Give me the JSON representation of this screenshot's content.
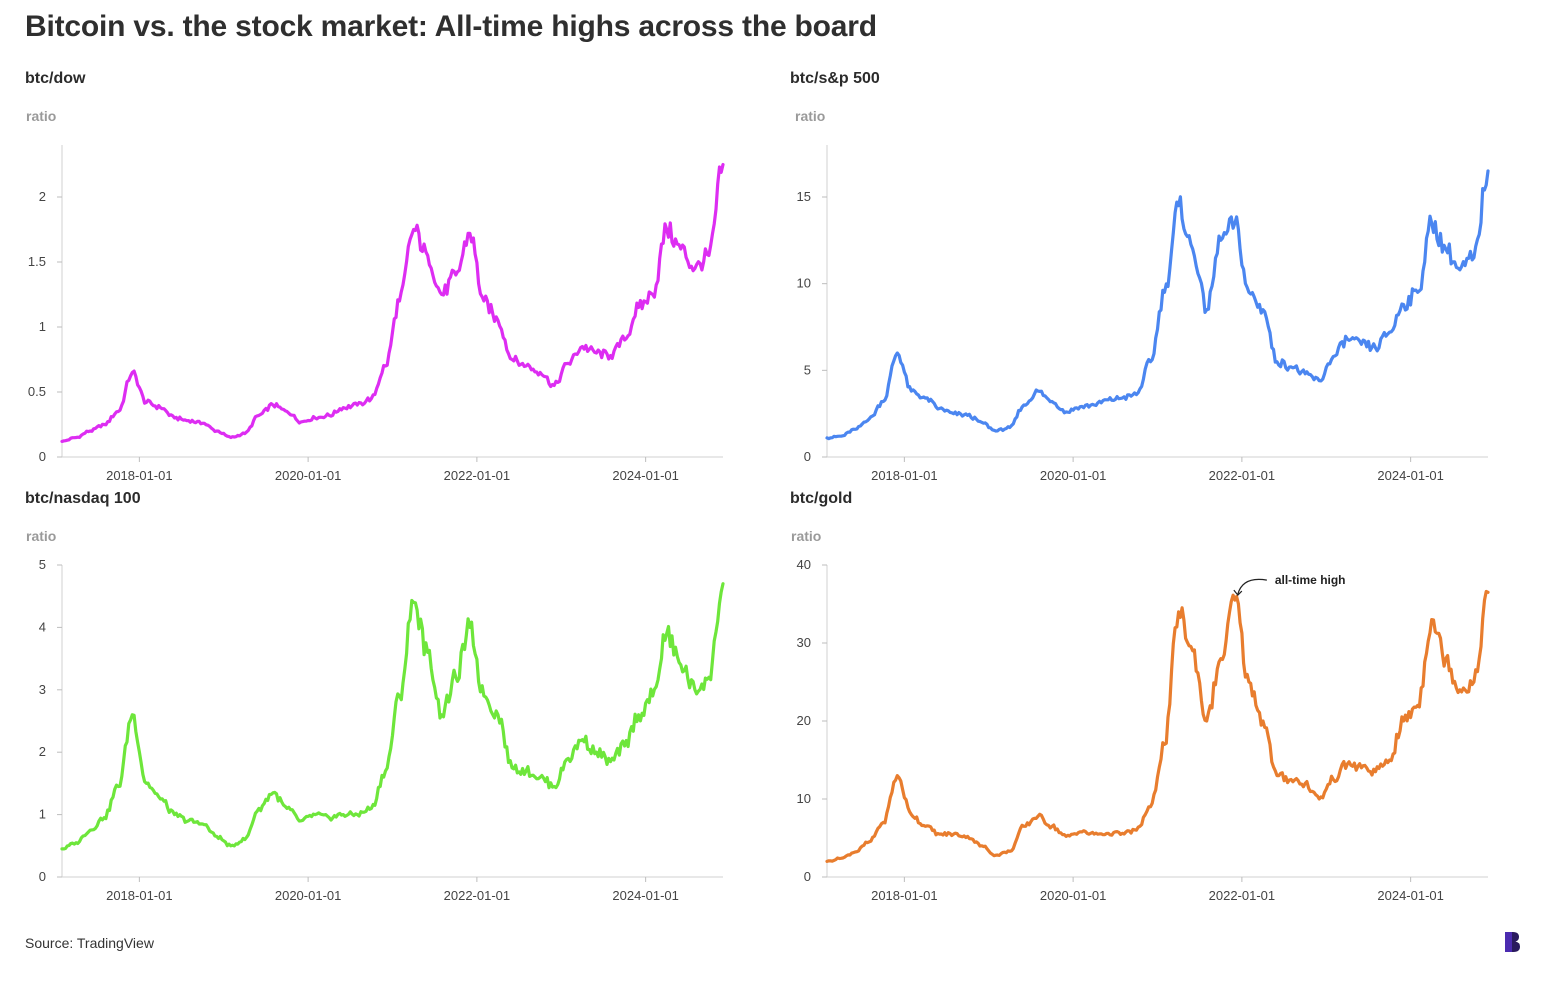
{
  "title": "Bitcoin vs. the stock market: All-time highs across the board",
  "source": "Source: TradingView",
  "logo": {
    "icon": "blockworks-logo-icon"
  },
  "chart_data": [
    {
      "id": "dow",
      "type": "line",
      "title": "btc/dow",
      "ylabel": "ratio",
      "color": "#dd2df2",
      "ylim": [
        0,
        2.4
      ],
      "yticks": [
        0,
        0.5,
        1,
        1.5,
        2
      ],
      "ytick_labels": [
        "0",
        "0.5",
        "1",
        "1.5",
        "2"
      ],
      "x": [
        "2017-02",
        "2017-04",
        "2017-06",
        "2017-08",
        "2017-10",
        "2017-12",
        "2018-02",
        "2018-04",
        "2018-06",
        "2018-08",
        "2018-10",
        "2018-12",
        "2019-02",
        "2019-04",
        "2019-06",
        "2019-08",
        "2019-10",
        "2019-12",
        "2020-02",
        "2020-04",
        "2020-06",
        "2020-08",
        "2020-10",
        "2020-12",
        "2021-02",
        "2021-04",
        "2021-06",
        "2021-08",
        "2021-10",
        "2021-12",
        "2022-02",
        "2022-04",
        "2022-06",
        "2022-08",
        "2022-10",
        "2022-12",
        "2023-02",
        "2023-04",
        "2023-06",
        "2023-08",
        "2023-10",
        "2023-12",
        "2024-02",
        "2024-04",
        "2024-06",
        "2024-08",
        "2024-10",
        "2024-12"
      ],
      "y": [
        0.12,
        0.15,
        0.2,
        0.25,
        0.35,
        0.65,
        0.42,
        0.38,
        0.3,
        0.28,
        0.26,
        0.2,
        0.15,
        0.18,
        0.32,
        0.4,
        0.35,
        0.27,
        0.3,
        0.32,
        0.38,
        0.4,
        0.45,
        0.7,
        1.2,
        1.75,
        1.55,
        1.25,
        1.4,
        1.72,
        1.2,
        1.05,
        0.75,
        0.7,
        0.65,
        0.55,
        0.72,
        0.85,
        0.8,
        0.78,
        0.9,
        1.15,
        1.25,
        1.75,
        1.6,
        1.45,
        1.55,
        2.25
      ]
    },
    {
      "id": "sp500",
      "type": "line",
      "title": "btc/s&p 500",
      "ylabel": "ratio",
      "color": "#4b86f0",
      "ylim": [
        0,
        18
      ],
      "yticks": [
        0,
        5,
        10,
        15
      ],
      "ytick_labels": [
        "0",
        "5",
        "10",
        "15"
      ],
      "x": [
        "2017-02",
        "2017-04",
        "2017-06",
        "2017-08",
        "2017-10",
        "2017-12",
        "2018-02",
        "2018-04",
        "2018-06",
        "2018-08",
        "2018-10",
        "2018-12",
        "2019-02",
        "2019-04",
        "2019-06",
        "2019-08",
        "2019-10",
        "2019-12",
        "2020-02",
        "2020-04",
        "2020-06",
        "2020-08",
        "2020-10",
        "2020-12",
        "2021-02",
        "2021-04",
        "2021-06",
        "2021-08",
        "2021-10",
        "2021-12",
        "2022-02",
        "2022-04",
        "2022-06",
        "2022-08",
        "2022-10",
        "2022-12",
        "2023-02",
        "2023-04",
        "2023-06",
        "2023-08",
        "2023-10",
        "2023-12",
        "2024-02",
        "2024-04",
        "2024-06",
        "2024-08",
        "2024-10",
        "2024-12"
      ],
      "y": [
        1.1,
        1.2,
        1.6,
        2.2,
        3.2,
        6.0,
        3.8,
        3.4,
        2.8,
        2.5,
        2.4,
        2.0,
        1.5,
        1.7,
        3.0,
        3.8,
        3.2,
        2.6,
        2.9,
        3.0,
        3.3,
        3.4,
        3.6,
        5.5,
        9.5,
        14.5,
        12.0,
        8.5,
        12.5,
        13.5,
        9.5,
        8.5,
        5.5,
        5.2,
        4.8,
        4.4,
        5.8,
        6.8,
        6.5,
        6.3,
        7.2,
        8.8,
        9.5,
        13.5,
        12.0,
        10.8,
        11.5,
        16.5
      ]
    },
    {
      "id": "nasdaq",
      "type": "line",
      "title": "btc/nasdaq 100",
      "ylabel": "ratio",
      "color": "#6ee63b",
      "ylim": [
        0,
        5
      ],
      "yticks": [
        0,
        1,
        2,
        3,
        4,
        5
      ],
      "ytick_labels": [
        "0",
        "1",
        "2",
        "3",
        "4",
        "5"
      ],
      "x": [
        "2017-02",
        "2017-04",
        "2017-06",
        "2017-08",
        "2017-10",
        "2017-12",
        "2018-02",
        "2018-04",
        "2018-06",
        "2018-08",
        "2018-10",
        "2018-12",
        "2019-02",
        "2019-04",
        "2019-06",
        "2019-08",
        "2019-10",
        "2019-12",
        "2020-02",
        "2020-04",
        "2020-06",
        "2020-08",
        "2020-10",
        "2020-12",
        "2021-02",
        "2021-04",
        "2021-06",
        "2021-08",
        "2021-10",
        "2021-12",
        "2022-02",
        "2022-04",
        "2022-06",
        "2022-08",
        "2022-10",
        "2022-12",
        "2023-02",
        "2023-04",
        "2023-06",
        "2023-08",
        "2023-10",
        "2023-12",
        "2024-02",
        "2024-04",
        "2024-06",
        "2024-08",
        "2024-10",
        "2024-12"
      ],
      "y": [
        0.45,
        0.55,
        0.75,
        0.95,
        1.45,
        2.6,
        1.5,
        1.25,
        1.0,
        0.9,
        0.85,
        0.65,
        0.5,
        0.6,
        1.1,
        1.35,
        1.1,
        0.9,
        1.0,
        0.95,
        1.0,
        1.0,
        1.1,
        1.7,
        2.9,
        4.4,
        3.6,
        2.6,
        3.2,
        4.0,
        2.9,
        2.6,
        1.75,
        1.7,
        1.6,
        1.45,
        1.9,
        2.2,
        2.0,
        1.85,
        2.1,
        2.6,
        2.9,
        3.9,
        3.4,
        3.0,
        3.2,
        4.7
      ]
    },
    {
      "id": "gold",
      "type": "line",
      "title": "btc/gold",
      "ylabel": "ratio",
      "color": "#e87d2e",
      "ylim": [
        0,
        40
      ],
      "yticks": [
        0,
        10,
        20,
        30,
        40
      ],
      "ytick_labels": [
        "0",
        "10",
        "20",
        "30",
        "40"
      ],
      "annotation": "all-time high",
      "x": [
        "2017-02",
        "2017-04",
        "2017-06",
        "2017-08",
        "2017-10",
        "2017-12",
        "2018-02",
        "2018-04",
        "2018-06",
        "2018-08",
        "2018-10",
        "2018-12",
        "2019-02",
        "2019-04",
        "2019-06",
        "2019-08",
        "2019-10",
        "2019-12",
        "2020-02",
        "2020-04",
        "2020-06",
        "2020-08",
        "2020-10",
        "2020-12",
        "2021-02",
        "2021-04",
        "2021-06",
        "2021-08",
        "2021-10",
        "2021-12",
        "2022-02",
        "2022-04",
        "2022-06",
        "2022-08",
        "2022-10",
        "2022-12",
        "2023-02",
        "2023-04",
        "2023-06",
        "2023-08",
        "2023-10",
        "2023-12",
        "2024-02",
        "2024-04",
        "2024-06",
        "2024-08",
        "2024-10",
        "2024-12"
      ],
      "y": [
        2.0,
        2.4,
        3.2,
        4.5,
        7.0,
        13.0,
        8.0,
        6.5,
        5.5,
        5.5,
        5.2,
        4.0,
        2.8,
        3.3,
        6.5,
        7.8,
        6.5,
        5.2,
        5.8,
        5.5,
        5.6,
        5.6,
        6.0,
        9.0,
        17.0,
        34.0,
        29.0,
        20.0,
        28.0,
        35.5,
        25.0,
        20.0,
        13.0,
        12.5,
        12.0,
        10.0,
        12.5,
        14.5,
        14.0,
        13.5,
        15.0,
        20.0,
        22.0,
        33.0,
        28.0,
        24.0,
        25.0,
        36.5
      ]
    }
  ],
  "x_axis": {
    "ticks": [
      "2018-01-01",
      "2020-01-01",
      "2022-01-01",
      "2024-01-01"
    ],
    "domain": [
      "2017-02",
      "2024-12"
    ]
  }
}
